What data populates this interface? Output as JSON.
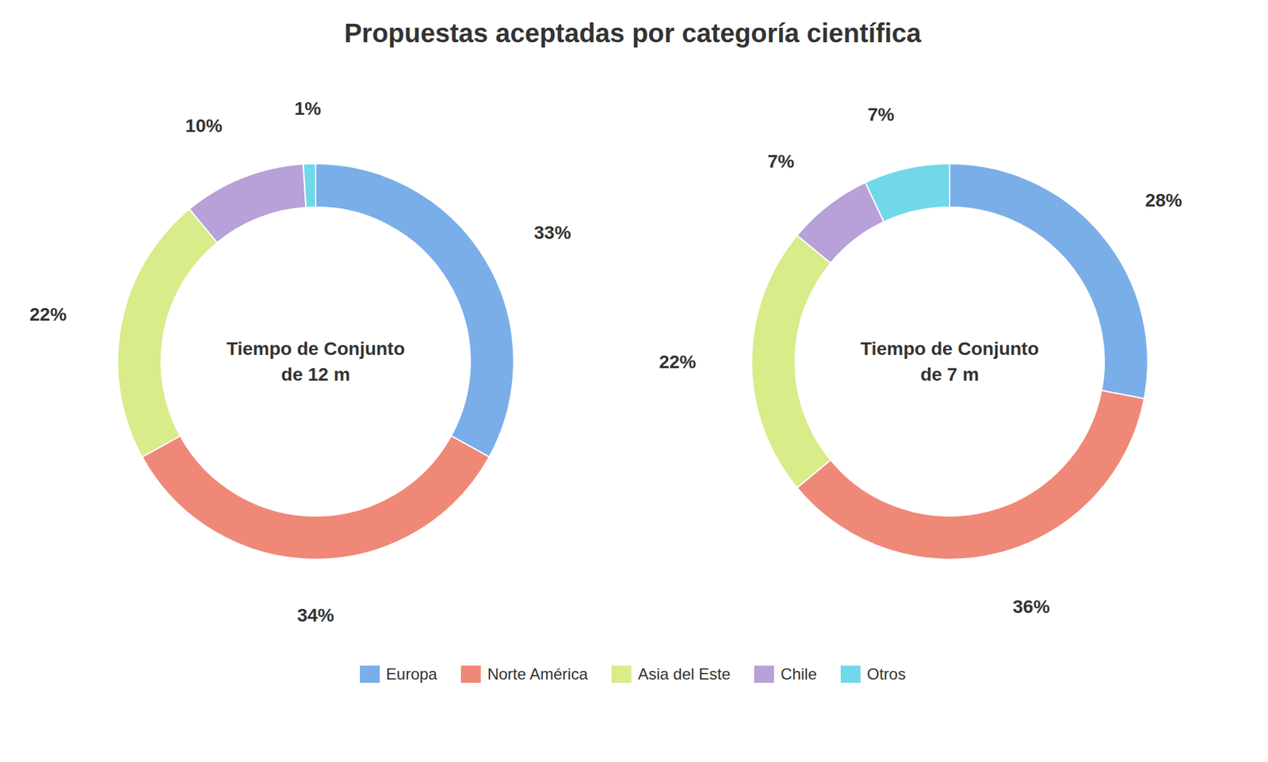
{
  "chart_data": {
    "type": "pie",
    "title": "Propuestas aceptadas por categoría científica",
    "categories": [
      "Europa",
      "Norte América",
      "Asia del Este",
      "Chile",
      "Otros"
    ],
    "colors": [
      "#7aaee8",
      "#f08878",
      "#d8ec8a",
      "#b8a0d8",
      "#70d8e8"
    ],
    "series": [
      {
        "name": "Tiempo de Conjunto\nde 12 m",
        "values": [
          33,
          34,
          22,
          10,
          1
        ],
        "value_labels": [
          "33%",
          "34%",
          "22%",
          "10%",
          "1%"
        ]
      },
      {
        "name": "Tiempo de Conjunto\nde 7 m",
        "values": [
          28,
          36,
          22,
          7,
          7
        ],
        "value_labels": [
          "28%",
          "36%",
          "22%",
          "7%",
          "7%"
        ]
      }
    ],
    "data_labels": true,
    "legend": "bottom"
  }
}
